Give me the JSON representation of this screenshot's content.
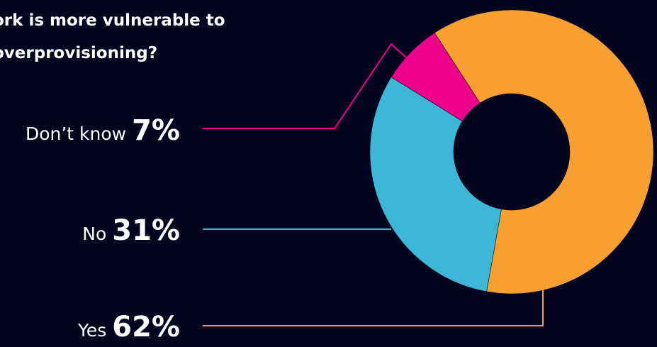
{
  "question": {
    "line1": "ork is more vulnerable to",
    "line2": "overprovisioning?"
  },
  "chart_data": {
    "type": "pie",
    "variant": "donut",
    "title": "",
    "categories": [
      "Yes",
      "No",
      "Don’t know"
    ],
    "values": [
      62,
      31,
      7
    ],
    "value_labels": [
      "62%",
      "31%",
      "7%"
    ],
    "unit": "%",
    "colors": [
      "#f7a030",
      "#3cb8d6",
      "#ec008c"
    ],
    "legend": "left, stacked labels with leader lines"
  },
  "colors": {
    "background": "#05041e",
    "text": "#ffffff"
  }
}
